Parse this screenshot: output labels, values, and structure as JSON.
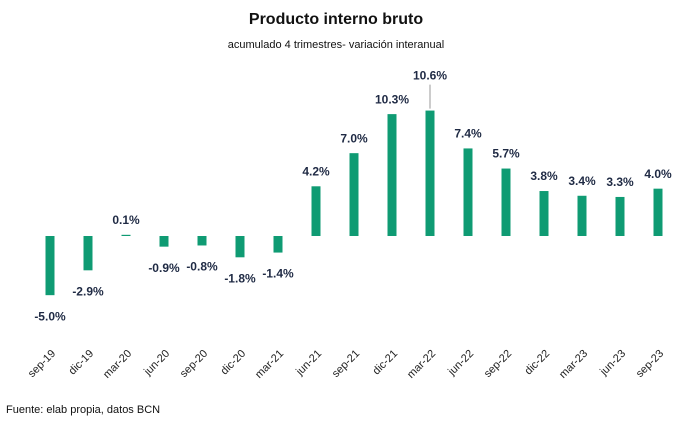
{
  "chart_data": {
    "type": "bar",
    "title": "Producto interno bruto",
    "subtitle": "acumulado 4 trimestres- variación interanual",
    "source": "Fuente: elab propia, datos BCN",
    "categories": [
      "sep-19",
      "dic-19",
      "mar-20",
      "jun-20",
      "sep-20",
      "dic-20",
      "mar-21",
      "jun-21",
      "sep-21",
      "dic-21",
      "mar-22",
      "jun-22",
      "sep-22",
      "dic-22",
      "mar-23",
      "jun-23",
      "sep-23"
    ],
    "values": [
      -5.0,
      -2.9,
      0.1,
      -0.9,
      -0.8,
      -1.8,
      -1.4,
      4.2,
      7.0,
      10.3,
      10.6,
      7.4,
      5.7,
      3.8,
      3.4,
      3.3,
      4.0
    ],
    "value_labels": [
      "-5.0%",
      "-2.9%",
      "0.1%",
      "-0.9%",
      "-0.8%",
      "-1.8%",
      "-1.4%",
      "4.2%",
      "7.0%",
      "10.3%",
      "10.6%",
      "7.4%",
      "5.7%",
      "3.8%",
      "3.4%",
      "3.3%",
      "4.0%"
    ],
    "color": "#0f9b73",
    "ylim": [
      -6,
      12
    ]
  }
}
